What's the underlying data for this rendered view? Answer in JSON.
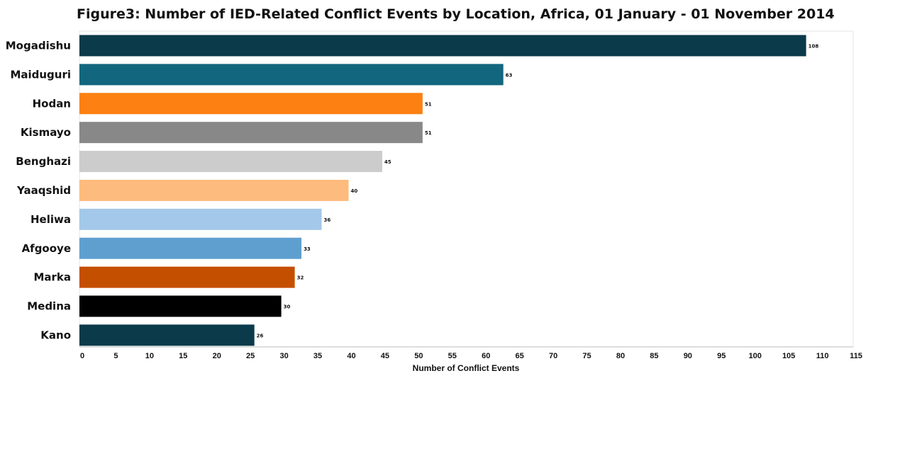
{
  "chart_data": {
    "type": "bar",
    "orientation": "horizontal",
    "title": "Figure3: Number of IED-Related Conflict Events by Location, Africa, 01 January - 01 November 2014",
    "xlabel": "Number of Conflict Events",
    "ylabel": "",
    "xlim": [
      0,
      115
    ],
    "xticks": [
      0,
      5,
      10,
      15,
      20,
      25,
      30,
      35,
      40,
      45,
      50,
      55,
      60,
      65,
      70,
      75,
      80,
      85,
      90,
      95,
      100,
      105,
      110,
      115
    ],
    "grid": false,
    "legend": "none",
    "categories": [
      "Mogadishu",
      "Maiduguri",
      "Hodan",
      "Kismayo",
      "Benghazi",
      "Yaaqshid",
      "Heliwa",
      "Afgooye",
      "Marka",
      "Medina",
      "Kano"
    ],
    "values": [
      108,
      63,
      51,
      51,
      45,
      40,
      36,
      33,
      32,
      30,
      26
    ],
    "colors": [
      "#0b3a4a",
      "#12677e",
      "#fc8112",
      "#888888",
      "#cccccc",
      "#fdbb7d",
      "#a3c8ea",
      "#5f9fd0",
      "#c54f00",
      "#000000",
      "#0b3a4a"
    ]
  }
}
